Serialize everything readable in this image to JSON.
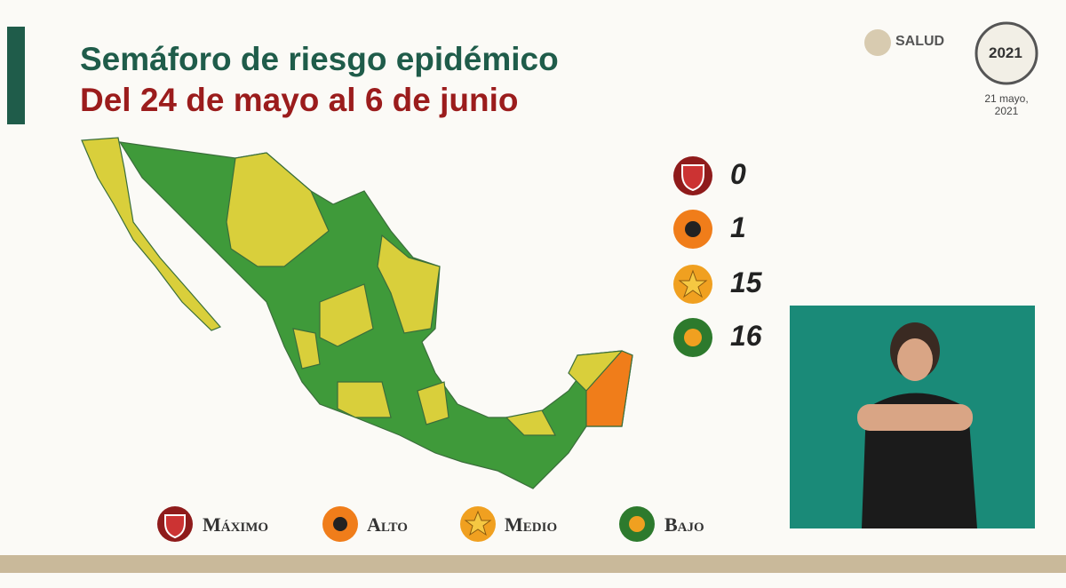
{
  "header": {
    "title": "Semáforo de riesgo epidémico",
    "subtitle": "Del 24 de mayo al 6 de junio"
  },
  "logo": {
    "name": "SALUD",
    "year": "2021",
    "date": "21 mayo, 2021"
  },
  "counts": [
    0,
    1,
    15,
    16
  ],
  "legend": [
    "Máximo",
    "Alto",
    "Medio",
    "Bajo"
  ]
}
